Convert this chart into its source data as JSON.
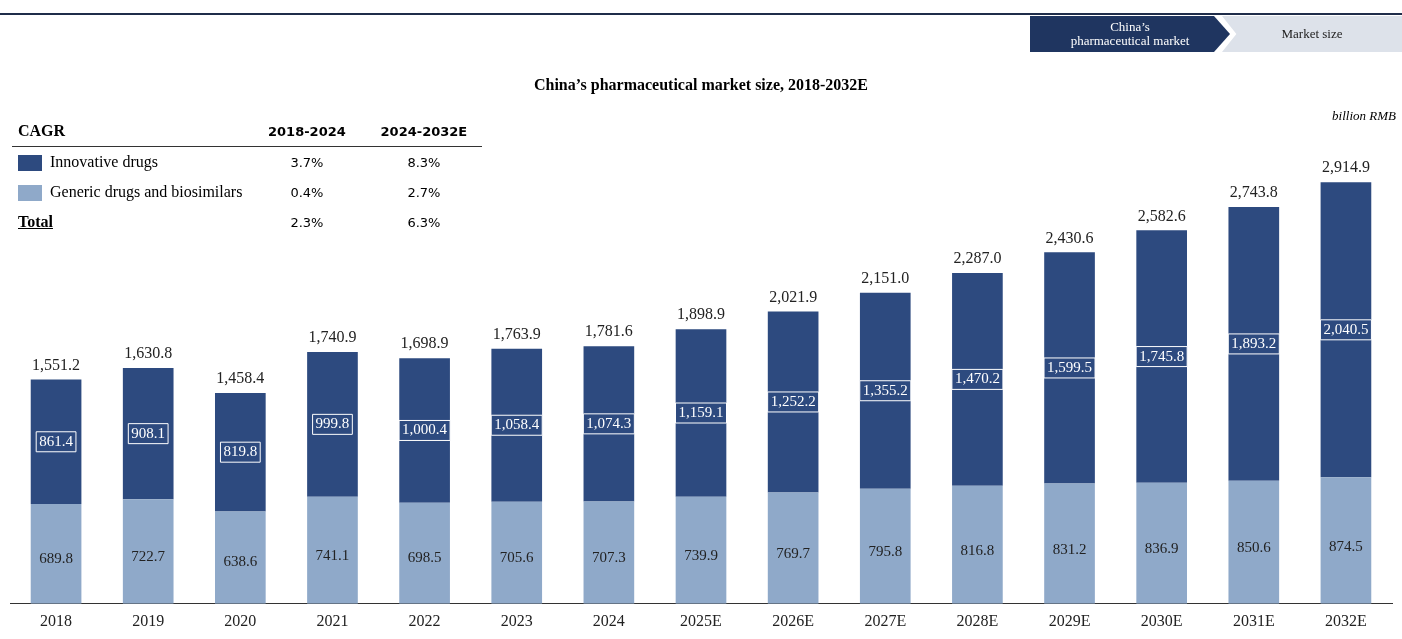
{
  "chart_data": {
    "type": "bar",
    "title": "China’s pharmaceutical market size, 2018-2032E",
    "categories": [
      "2018",
      "2019",
      "2020",
      "2021",
      "2022",
      "2023",
      "2024",
      "2025E",
      "2026E",
      "2027E",
      "2028E",
      "2029E",
      "2030E",
      "2031E",
      "2032E"
    ],
    "stacked": true,
    "legend": "top left",
    "grid": false,
    "series": [
      {
        "name": "Generic drugs and biosimilars",
        "color": "#8fa9c9",
        "values": [
          689.8,
          722.7,
          638.6,
          741.1,
          698.5,
          705.6,
          707.3,
          739.9,
          769.7,
          795.8,
          816.8,
          831.2,
          836.9,
          850.6,
          874.5
        ],
        "value_labels": [
          "689.8",
          "722.7",
          "638.6",
          "741.1",
          "698.5",
          "705.6",
          "707.3",
          "739.9",
          "769.7",
          "795.8",
          "816.8",
          "831.2",
          "836.9",
          "850.6",
          "874.5"
        ]
      },
      {
        "name": "Innovative drugs",
        "color": "#2d4a7f",
        "values": [
          861.4,
          908.1,
          819.8,
          999.8,
          1000.4,
          1058.4,
          1074.3,
          1159.1,
          1252.2,
          1355.2,
          1470.2,
          1599.5,
          1745.8,
          1893.2,
          2040.5
        ],
        "value_labels": [
          "861.4",
          "908.1",
          "819.8",
          "999.8",
          "1,000.4",
          "1,058.4",
          "1,074.3",
          "1,159.1",
          "1,252.2",
          "1,355.2",
          "1,470.2",
          "1,599.5",
          "1,745.8",
          "1,893.2",
          "2,040.5"
        ]
      }
    ],
    "totals": [
      "1,551.2",
      "1,630.8",
      "1,458.4",
      "1,740.9",
      "1,698.9",
      "1,763.9",
      "1,781.6",
      "1,898.9",
      "2,021.9",
      "2,151.0",
      "2,287.0",
      "2,430.6",
      "2,582.6",
      "2,743.8",
      "2,914.9"
    ],
    "annotations": [
      "China’s pharmaceutical market",
      "Market size",
      "billion RMB",
      "CAGR",
      "2018-2024",
      "2024-2032E",
      "3.7%",
      "8.3%",
      "0.4%",
      "2.7%",
      "Total",
      "2.3%",
      "6.3%"
    ]
  }
}
